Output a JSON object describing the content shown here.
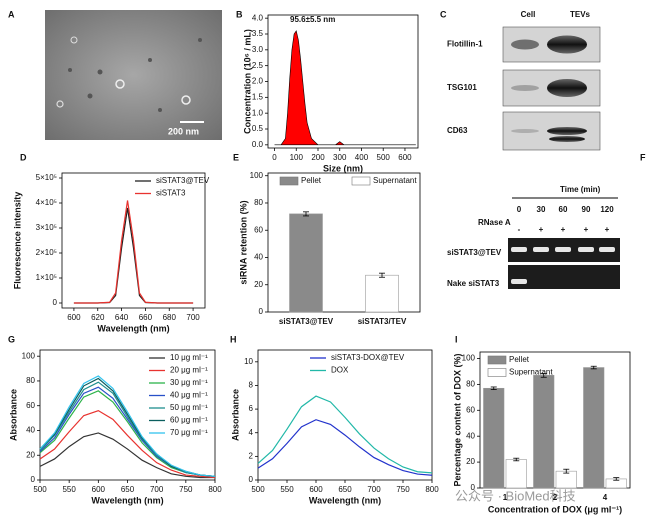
{
  "tem_image": {
    "label": "A",
    "scale_bar": "200 nm"
  },
  "western_blot": {
    "label": "C",
    "columns": [
      "Cell",
      "TEVs"
    ],
    "rows": [
      "Flotillin-1",
      "TSG101",
      "CD63"
    ]
  },
  "gel": {
    "label": "F",
    "time_title": "Time (min)",
    "times": [
      "0",
      "30",
      "60",
      "90",
      "120"
    ],
    "treatment": "RNase A",
    "signs": [
      "-",
      "+",
      "+",
      "+",
      "+"
    ],
    "rows": [
      "siSTAT3@TEV",
      "Nake siSTAT3"
    ]
  },
  "watermark": "公众号 · BioMed科技",
  "chart_data": [
    {
      "type": "area",
      "label": "B",
      "annotation": "95.6±5.5 nm",
      "xlabel": "Size (nm)",
      "ylabel": "Concentration (10⁶ / mL)",
      "x": [
        0,
        30,
        50,
        60,
        70,
        80,
        90,
        100,
        110,
        120,
        130,
        140,
        150,
        170,
        200,
        280,
        300,
        320,
        650
      ],
      "values": [
        0,
        0,
        0.2,
        1.0,
        2.1,
        3.0,
        3.5,
        3.6,
        3.3,
        2.7,
        2.0,
        1.3,
        0.7,
        0.2,
        0,
        0,
        0.1,
        0,
        0
      ],
      "color": "#ff0000",
      "xlim": [
        -30,
        660
      ],
      "ylim": [
        -0.1,
        4.1
      ],
      "xticks": [
        0,
        100,
        200,
        300,
        400,
        500,
        600
      ],
      "yticks": [
        {
          "value": 0,
          "label": "0.0"
        },
        0.5,
        {
          "value": 1,
          "label": "1.0"
        },
        1.5,
        {
          "value": 2,
          "label": "2.0"
        },
        2.5,
        {
          "value": 3,
          "label": "3.0"
        },
        3.5,
        {
          "value": 4,
          "label": "4.0"
        }
      ]
    },
    {
      "type": "line",
      "label": "D",
      "xlabel": "Wavelength (nm)",
      "ylabel": "Fluorescence intensity",
      "legend": "upper right",
      "x": [
        600,
        610,
        620,
        630,
        635,
        640,
        645,
        650,
        655,
        660,
        670,
        680,
        690,
        700
      ],
      "series": [
        {
          "name": "siSTAT3@TEV",
          "color": "#222222",
          "values": [
            0,
            0,
            0,
            2000,
            30000,
            220000,
            380000,
            220000,
            30000,
            2000,
            0,
            0,
            0,
            0
          ]
        },
        {
          "name": "siSTAT3",
          "color": "#e8332f",
          "values": [
            0,
            0,
            0,
            3000,
            40000,
            250000,
            410000,
            250000,
            40000,
            3000,
            0,
            0,
            0,
            0
          ]
        }
      ],
      "xlim": [
        590,
        710
      ],
      "ylim": [
        -20000,
        520000
      ],
      "xticks": [
        600,
        620,
        640,
        660,
        680,
        700
      ],
      "yticks": [
        0,
        {
          "value": 100000,
          "label": "1×10⁵"
        },
        {
          "value": 200000,
          "label": "2×10⁵"
        },
        {
          "value": 300000,
          "label": "3×10⁵"
        },
        {
          "value": 400000,
          "label": "4×10⁵"
        },
        {
          "value": 500000,
          "label": "5×10⁵"
        }
      ]
    },
    {
      "type": "bar",
      "label": "E",
      "ylabel": "siRNA retention (%)",
      "legend": "upper center",
      "categories": [
        "siSTAT3@TEV",
        "siSTAT3/TEV"
      ],
      "series": [
        {
          "name": "Pellet",
          "color": "#8a8a8a",
          "values": [
            72,
            null
          ],
          "errors": [
            1.5,
            null
          ]
        },
        {
          "name": "Supernatant",
          "color": "#ffffff",
          "values": [
            null,
            27
          ],
          "errors": [
            null,
            1.5
          ]
        }
      ],
      "ylim": [
        0,
        102
      ],
      "yticks": [
        0,
        20,
        40,
        60,
        80,
        100
      ]
    },
    {
      "type": "line",
      "label": "G",
      "xlabel": "Wavelength (nm)",
      "ylabel": "Absorbance",
      "legend": "upper right",
      "x": [
        500,
        525,
        550,
        575,
        600,
        625,
        650,
        675,
        700,
        725,
        750,
        775,
        800
      ],
      "series": [
        {
          "name": "10 μg ml⁻¹",
          "color": "#333333",
          "values": [
            11,
            17,
            27,
            35,
            38,
            33,
            25,
            16,
            10,
            5,
            3,
            2,
            2
          ]
        },
        {
          "name": "20 μg ml⁻¹",
          "color": "#e8332f",
          "values": [
            17,
            25,
            39,
            52,
            56,
            49,
            36,
            24,
            14,
            8,
            4,
            3,
            2
          ]
        },
        {
          "name": "30 μg ml⁻¹",
          "color": "#2db34a",
          "values": [
            22,
            32,
            50,
            67,
            72,
            63,
            47,
            30,
            18,
            10,
            6,
            4,
            3
          ]
        },
        {
          "name": "40 μg ml⁻¹",
          "color": "#2850c8",
          "values": [
            23,
            34,
            53,
            70,
            75,
            66,
            49,
            32,
            19,
            11,
            6,
            4,
            3
          ]
        },
        {
          "name": "50 μg ml⁻¹",
          "color": "#1f8f8f",
          "values": [
            24,
            36,
            55,
            73,
            79,
            70,
            51,
            33,
            20,
            11,
            6,
            4,
            3
          ]
        },
        {
          "name": "60 μg ml⁻¹",
          "color": "#0b5e5e",
          "values": [
            25,
            37,
            57,
            76,
            82,
            72,
            53,
            34,
            21,
            11,
            7,
            4,
            3
          ]
        },
        {
          "name": "70 μg ml⁻¹",
          "color": "#33c4ee",
          "values": [
            25,
            38,
            59,
            78,
            84,
            74,
            55,
            35,
            21,
            12,
            7,
            4,
            3
          ]
        }
      ],
      "xlim": [
        500,
        800
      ],
      "ylim": [
        0,
        105
      ],
      "xticks": [
        500,
        550,
        600,
        650,
        700,
        750,
        800
      ],
      "yticks": [
        0,
        20,
        40,
        60,
        80,
        100
      ]
    },
    {
      "type": "line",
      "label": "H",
      "xlabel": "Wavelength (nm)",
      "ylabel": "Absorbance",
      "legend": "upper right",
      "x": [
        500,
        525,
        550,
        575,
        600,
        625,
        650,
        675,
        700,
        725,
        750,
        775,
        800
      ],
      "series": [
        {
          "name": "siSTAT3-DOX@TEV",
          "color": "#2233cc",
          "values": [
            1.0,
            1.8,
            3.1,
            4.5,
            5.1,
            4.7,
            3.8,
            2.8,
            1.9,
            1.3,
            0.8,
            0.5,
            0.4
          ]
        },
        {
          "name": "DOX",
          "color": "#22b8a8",
          "values": [
            1.4,
            2.5,
            4.3,
            6.2,
            7.1,
            6.6,
            5.3,
            3.9,
            2.7,
            1.8,
            1.1,
            0.7,
            0.6
          ]
        }
      ],
      "xlim": [
        500,
        800
      ],
      "ylim": [
        0,
        11
      ],
      "xticks": [
        500,
        550,
        600,
        650,
        700,
        750,
        800
      ],
      "yticks": [
        0,
        2,
        4,
        6,
        8,
        10
      ]
    },
    {
      "type": "bar",
      "label": "I",
      "xlabel": "Concentration of DOX (μg ml⁻¹)",
      "ylabel": "Percentage content of DOX (%)",
      "legend": "upper left",
      "categories": [
        "1",
        "2",
        "4"
      ],
      "series": [
        {
          "name": "Pellet",
          "color": "#8a8a8a",
          "values": [
            77,
            87,
            93
          ],
          "errors": [
            1,
            1.5,
            1
          ]
        },
        {
          "name": "Supernatant",
          "color": "#ffffff",
          "values": [
            22,
            13,
            7
          ],
          "errors": [
            1,
            1.5,
            1
          ]
        }
      ],
      "ylim": [
        0,
        105
      ],
      "yticks": [
        0,
        20,
        40,
        60,
        80,
        100
      ]
    }
  ]
}
